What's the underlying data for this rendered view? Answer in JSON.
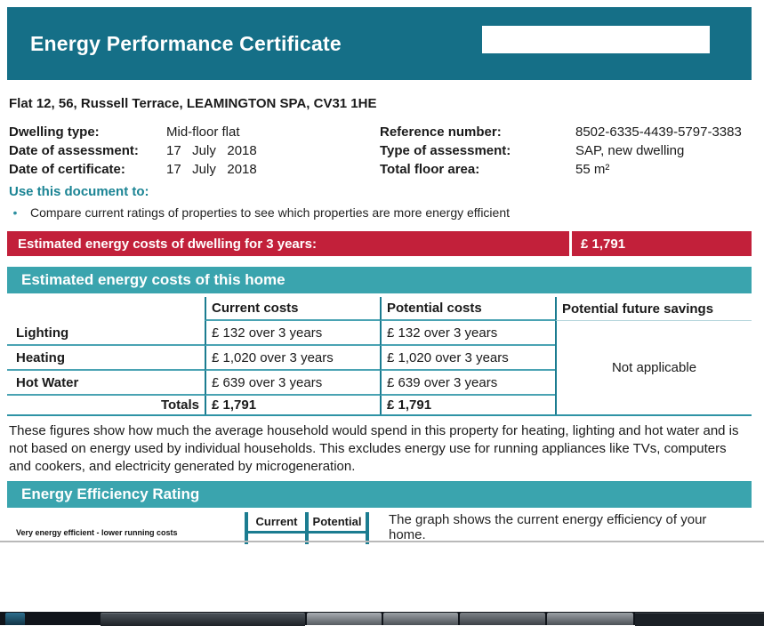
{
  "header": {
    "title": "Energy Performance Certificate"
  },
  "address": "Flat 12, 56, Russell Terrace, LEAMINGTON SPA, CV31 1HE",
  "details": {
    "left": [
      {
        "label": "Dwelling type:",
        "value": "Mid-floor flat"
      },
      {
        "label": "Date of assessment:",
        "value": "17   July   2018"
      },
      {
        "label": "Date of certificate:",
        "value": "17   July   2018"
      }
    ],
    "right": [
      {
        "label": "Reference number:",
        "value": "8502-6335-4439-5797-3383"
      },
      {
        "label": "Type of assessment:",
        "value": "SAP, new dwelling"
      },
      {
        "label": "Total floor area:",
        "value": "55 m²"
      }
    ]
  },
  "use_document": {
    "heading": "Use this document to:",
    "bullets": [
      "Compare current ratings of properties to see which properties are more energy efficient"
    ]
  },
  "cost_banner": {
    "label": "Estimated energy costs of dwelling for 3 years:",
    "value": "£ 1,791"
  },
  "costs_section": {
    "title": "Estimated energy costs of this home",
    "table": {
      "columns": [
        "",
        "Current costs",
        "Potential costs",
        "Potential future savings"
      ],
      "rows": [
        {
          "label": "Lighting",
          "current": "£ 132 over 3 years",
          "potential": "£ 132 over 3 years"
        },
        {
          "label": "Heating",
          "current": "£ 1,020 over 3 years",
          "potential": "£ 1,020 over 3 years"
        },
        {
          "label": "Hot Water",
          "current": "£ 639 over 3 years",
          "potential": "£ 639 over 3 years"
        }
      ],
      "totals": {
        "label": "Totals",
        "current": "£ 1,791",
        "potential": "£ 1,791"
      },
      "savings_note": "Not applicable"
    },
    "footnote": "These figures show how much the average household would spend in this property for heating, lighting and hot water and is not based on energy used by individual households. This excludes energy use for running appliances like TVs, computers and cookers, and electricity generated by microgeneration."
  },
  "rating_section": {
    "title": "Energy Efficiency Rating",
    "axis_note": "Very energy efficient - lower running costs",
    "col_current": "Current",
    "col_potential": "Potential",
    "description": "The graph shows the current energy efficiency of your home."
  },
  "colors": {
    "header_teal": "#156f87",
    "section_teal": "#3aa4ae",
    "banner_red": "#c2203a",
    "table_border_teal": "#1b7c90"
  }
}
